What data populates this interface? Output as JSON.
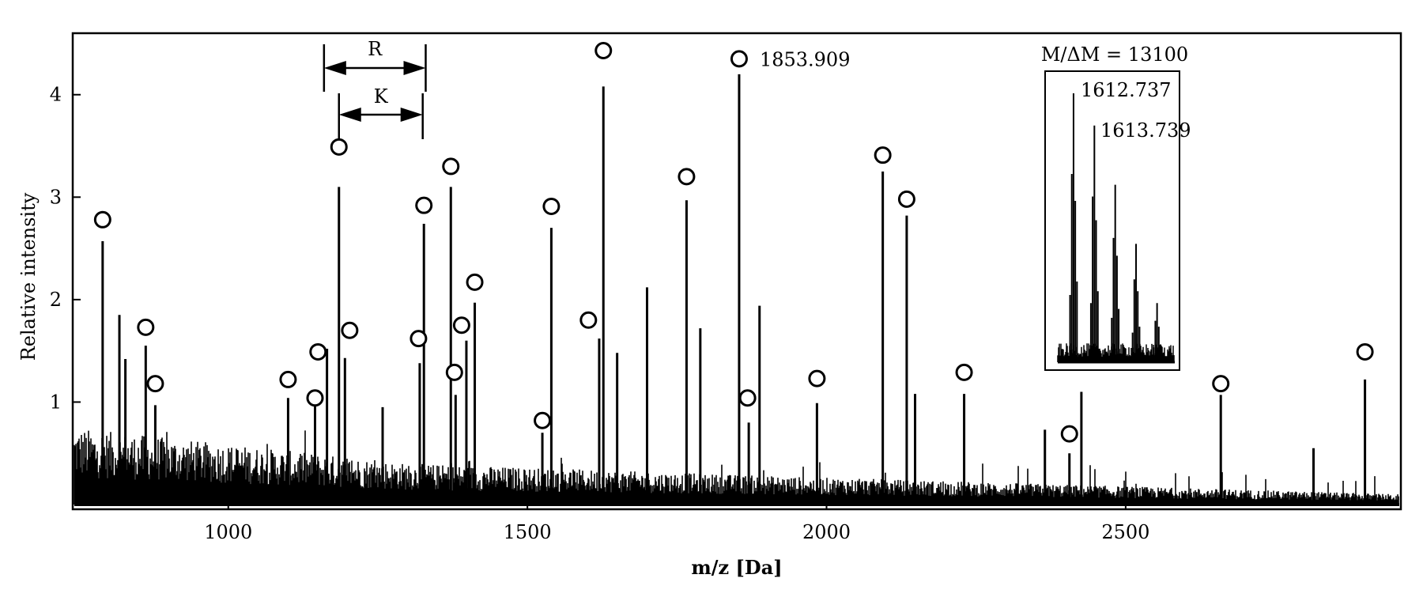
{
  "chart_data": {
    "type": "line",
    "subtype": "mass-spectrum",
    "xlabel": "m/z [Da]",
    "ylabel": "Relative intensity",
    "xlim": [
      740,
      2960
    ],
    "ylim": [
      0.0,
      4.6
    ],
    "xticks": [
      1000,
      1500,
      2000,
      2500
    ],
    "xtick_labels": [
      "1000",
      "1500",
      "2000",
      "2500"
    ],
    "yticks": [
      1,
      2,
      3,
      4
    ],
    "ytick_labels": [
      "1",
      "2",
      "3",
      "4"
    ],
    "grid": false,
    "peaks": [
      {
        "x": 790,
        "y": 2.57
      },
      {
        "x": 818,
        "y": 1.85
      },
      {
        "x": 828,
        "y": 1.42
      },
      {
        "x": 862,
        "y": 1.55
      },
      {
        "x": 878,
        "y": 0.97
      },
      {
        "x": 1100,
        "y": 1.04
      },
      {
        "x": 1145,
        "y": 0.96
      },
      {
        "x": 1165,
        "y": 1.52
      },
      {
        "x": 1185,
        "y": 3.1
      },
      {
        "x": 1195,
        "y": 1.43
      },
      {
        "x": 1258,
        "y": 0.95
      },
      {
        "x": 1320,
        "y": 1.38
      },
      {
        "x": 1327,
        "y": 2.74
      },
      {
        "x": 1372,
        "y": 3.1
      },
      {
        "x": 1380,
        "y": 1.07
      },
      {
        "x": 1398,
        "y": 1.6
      },
      {
        "x": 1412,
        "y": 1.97
      },
      {
        "x": 1525,
        "y": 0.7
      },
      {
        "x": 1540,
        "y": 2.7
      },
      {
        "x": 1620,
        "y": 1.62
      },
      {
        "x": 1627,
        "y": 4.08
      },
      {
        "x": 1650,
        "y": 1.48
      },
      {
        "x": 1700,
        "y": 2.12
      },
      {
        "x": 1766,
        "y": 2.97
      },
      {
        "x": 1789,
        "y": 1.72
      },
      {
        "x": 1853.909,
        "y": 4.2
      },
      {
        "x": 1870,
        "y": 0.8
      },
      {
        "x": 1888,
        "y": 1.94
      },
      {
        "x": 1984,
        "y": 0.99
      },
      {
        "x": 2094,
        "y": 3.25
      },
      {
        "x": 2134,
        "y": 2.82
      },
      {
        "x": 2148,
        "y": 1.08
      },
      {
        "x": 2230,
        "y": 1.08
      },
      {
        "x": 2365,
        "y": 0.73
      },
      {
        "x": 2406,
        "y": 0.5
      },
      {
        "x": 2426,
        "y": 1.1
      },
      {
        "x": 2659,
        "y": 1.07
      },
      {
        "x": 2814,
        "y": 0.55
      },
      {
        "x": 2900,
        "y": 1.22
      }
    ],
    "marked_peaks": [
      {
        "x": 790,
        "y": 2.78
      },
      {
        "x": 862,
        "y": 1.73
      },
      {
        "x": 878,
        "y": 1.18
      },
      {
        "x": 1100,
        "y": 1.22
      },
      {
        "x": 1145,
        "y": 1.04
      },
      {
        "x": 1150,
        "y": 1.49
      },
      {
        "x": 1185,
        "y": 3.49
      },
      {
        "x": 1203,
        "y": 1.7
      },
      {
        "x": 1318,
        "y": 1.62
      },
      {
        "x": 1327,
        "y": 2.92
      },
      {
        "x": 1372,
        "y": 3.3
      },
      {
        "x": 1378,
        "y": 1.29
      },
      {
        "x": 1390,
        "y": 1.75
      },
      {
        "x": 1412,
        "y": 2.17
      },
      {
        "x": 1525,
        "y": 0.82
      },
      {
        "x": 1540,
        "y": 2.91
      },
      {
        "x": 1602,
        "y": 1.8
      },
      {
        "x": 1627,
        "y": 4.43
      },
      {
        "x": 1766,
        "y": 3.2
      },
      {
        "x": 1853.909,
        "y": 4.35
      },
      {
        "x": 1868,
        "y": 1.04
      },
      {
        "x": 1984,
        "y": 1.23
      },
      {
        "x": 2094,
        "y": 3.41
      },
      {
        "x": 2134,
        "y": 2.98
      },
      {
        "x": 2230,
        "y": 1.29
      },
      {
        "x": 2406,
        "y": 0.69
      },
      {
        "x": 2659,
        "y": 1.18
      },
      {
        "x": 2900,
        "y": 1.49
      }
    ],
    "annotations": {
      "peak_label": {
        "x": 1853.909,
        "y": 4.35,
        "text": "1853.909"
      },
      "R": {
        "label": "R",
        "x_start": 1160,
        "x_end": 1330,
        "y": 4.25
      },
      "K": {
        "label": "K",
        "x_start": 1185,
        "x_end": 1325,
        "y": 2.15
      }
    },
    "inset": {
      "title": "M/ΔM = 13100",
      "peaks": [
        {
          "x": 1612.737,
          "y": 1.0,
          "label": "1612.737"
        },
        {
          "x": 1613.739,
          "y": 0.88,
          "label": "1613.739"
        },
        {
          "x": 1614.74,
          "y": 0.66
        },
        {
          "x": 1615.74,
          "y": 0.44
        },
        {
          "x": 1616.75,
          "y": 0.22
        }
      ]
    }
  }
}
